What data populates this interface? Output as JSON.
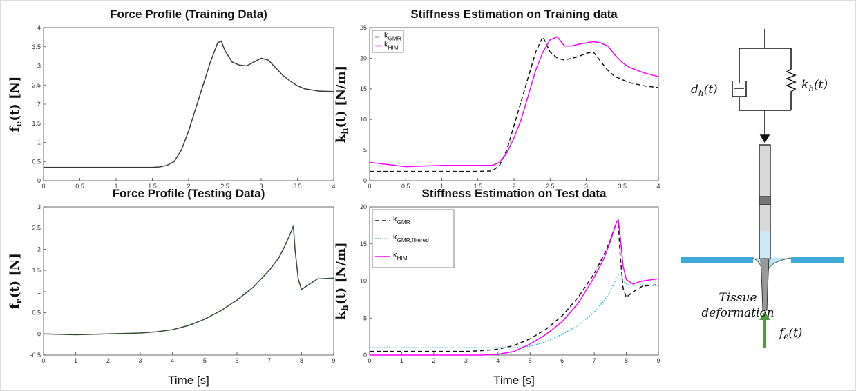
{
  "chart_data": [
    {
      "type": "line",
      "title": "Force Profile (Training Data)",
      "ylabel": {
        "main": "f",
        "sub": "e",
        "rest": "(t) [N]"
      },
      "x": [
        0,
        0.5,
        1,
        1.5,
        1.6,
        1.7,
        1.8,
        1.9,
        2.0,
        2.1,
        2.2,
        2.3,
        2.4,
        2.45,
        2.5,
        2.6,
        2.7,
        2.8,
        2.9,
        3.0,
        3.1,
        3.2,
        3.3,
        3.4,
        3.5,
        3.6,
        3.8,
        4.0
      ],
      "values": [
        0.35,
        0.35,
        0.35,
        0.35,
        0.36,
        0.4,
        0.5,
        0.8,
        1.3,
        1.9,
        2.5,
        3.1,
        3.6,
        3.65,
        3.4,
        3.1,
        3.02,
        3.0,
        3.1,
        3.2,
        3.15,
        2.95,
        2.75,
        2.6,
        2.48,
        2.4,
        2.34,
        2.33
      ],
      "color": "#3a3a3a",
      "xlim": [
        0,
        4
      ],
      "xticks": [
        0,
        0.5,
        1,
        1.5,
        2,
        2.5,
        3,
        3.5,
        4
      ],
      "ylim": [
        0,
        4
      ],
      "yticks": [
        0,
        0.5,
        1,
        1.5,
        2,
        2.5,
        3,
        3.5,
        4
      ]
    },
    {
      "type": "line",
      "title": "Stiffness Estimation on Training data",
      "ylabel": {
        "main": "k",
        "sub": "h",
        "rest": "(t) [N/m]"
      },
      "x": [
        0,
        0.5,
        1,
        1.5,
        1.7,
        1.8,
        1.9,
        2.0,
        2.1,
        2.2,
        2.3,
        2.4,
        2.5,
        2.6,
        2.7,
        2.8,
        2.9,
        3.0,
        3.1,
        3.2,
        3.3,
        3.4,
        3.5,
        3.6,
        3.8,
        4.0
      ],
      "series": [
        {
          "name": "k",
          "sub": "GMR",
          "color": "#111111",
          "style": "dashed",
          "values": [
            1.5,
            1.5,
            1.5,
            1.5,
            1.6,
            2.5,
            5,
            9,
            13,
            17,
            21,
            23.5,
            21,
            20,
            19.7,
            20,
            20.3,
            20.8,
            21,
            19.5,
            18,
            17,
            16.5,
            16,
            15.5,
            15.2
          ]
        },
        {
          "name": "k",
          "sub": "HIM",
          "color": "#ff00ff",
          "style": "solid",
          "values": [
            3,
            2.3,
            2.5,
            2.5,
            2.5,
            3,
            4.5,
            7,
            10,
            14,
            18,
            21,
            23,
            23.5,
            22,
            22,
            22.3,
            22.5,
            22.7,
            22.5,
            22,
            20.5,
            19.3,
            18.5,
            17.6,
            17
          ]
        }
      ],
      "legend": "upper left",
      "xlim": [
        0,
        4
      ],
      "xticks": [
        0,
        0.5,
        1,
        1.5,
        2,
        2.5,
        3,
        3.5,
        4
      ],
      "ylim": [
        0,
        25
      ],
      "yticks": [
        0,
        5,
        10,
        15,
        20,
        25
      ]
    },
    {
      "type": "line",
      "title": "Force Profile (Testing Data)",
      "xlabel": "Time [s]",
      "ylabel": {
        "main": "f",
        "sub": "e",
        "rest": "(t) [N]"
      },
      "x": [
        0,
        1,
        2,
        3,
        3.5,
        4,
        4.5,
        5,
        5.5,
        6,
        6.5,
        7,
        7.3,
        7.5,
        7.7,
        7.75,
        7.8,
        7.9,
        8.0,
        8.2,
        8.5,
        9
      ],
      "values": [
        0,
        -0.02,
        0,
        0.02,
        0.05,
        0.1,
        0.2,
        0.35,
        0.55,
        0.8,
        1.1,
        1.5,
        1.8,
        2.1,
        2.45,
        2.55,
        2.0,
        1.3,
        1.05,
        1.15,
        1.3,
        1.32
      ],
      "color": "#2f4f2f",
      "xlim": [
        0,
        9
      ],
      "xticks": [
        0,
        1,
        2,
        3,
        4,
        5,
        6,
        7,
        8,
        9
      ],
      "ylim": [
        -0.5,
        3
      ],
      "yticks": [
        -0.5,
        0,
        0.5,
        1,
        1.5,
        2,
        2.5,
        3
      ]
    },
    {
      "type": "line",
      "title": "Stiffness Estimation on Test data",
      "xlabel": "Time [s]",
      "ylabel": {
        "main": "k",
        "sub": "h",
        "rest": "(t) [N/m]"
      },
      "x": [
        0,
        1,
        2,
        3,
        3.5,
        4,
        4.5,
        5,
        5.5,
        6,
        6.5,
        7,
        7.3,
        7.5,
        7.7,
        7.75,
        7.8,
        7.9,
        8.0,
        8.2,
        8.5,
        9
      ],
      "series": [
        {
          "name": "k",
          "sub": "GMR",
          "color": "#111111",
          "style": "dashed",
          "values": [
            0.5,
            0.5,
            0.5,
            0.5,
            0.6,
            0.8,
            1.3,
            2.2,
            3.5,
            5.3,
            7.8,
            11,
            13.5,
            15.5,
            18,
            18.2,
            14,
            9,
            7.8,
            8.5,
            9.3,
            9.5
          ]
        },
        {
          "name": "k",
          "sub": "GMR,filtered",
          "color": "#22b8d8",
          "style": "dotted",
          "values": [
            1,
            1,
            1,
            1,
            1,
            1,
            1,
            1.2,
            1.8,
            2.8,
            4,
            5.8,
            7.3,
            8.6,
            10.5,
            10.8,
            10.6,
            10,
            9.6,
            9.4,
            9.5,
            9.4
          ]
        },
        {
          "name": "k",
          "sub": "HIM",
          "color": "#ff00ff",
          "style": "solid",
          "values": [
            0,
            0,
            0,
            0,
            0,
            0.1,
            0.5,
            1.5,
            2.8,
            4.5,
            7,
            10.5,
            13,
            15.3,
            18,
            18.2,
            16.5,
            12,
            10.2,
            9.6,
            10,
            10.3
          ]
        }
      ],
      "legend": "upper left",
      "xlim": [
        0,
        9
      ],
      "xticks": [
        0,
        1,
        2,
        3,
        4,
        5,
        6,
        7,
        8,
        9
      ],
      "ylim": [
        0,
        20
      ],
      "yticks": [
        0,
        5,
        10,
        15,
        20
      ]
    }
  ],
  "diagram": {
    "damper_label": {
      "main": "d",
      "sub": "h",
      "rest": "(t)"
    },
    "spring_label": {
      "main": "k",
      "sub": "h",
      "rest": "(t)"
    },
    "tissue_label": [
      "Tissue",
      "deformation"
    ],
    "force_label": {
      "main": "f",
      "sub": "e",
      "rest": "(t)"
    }
  }
}
